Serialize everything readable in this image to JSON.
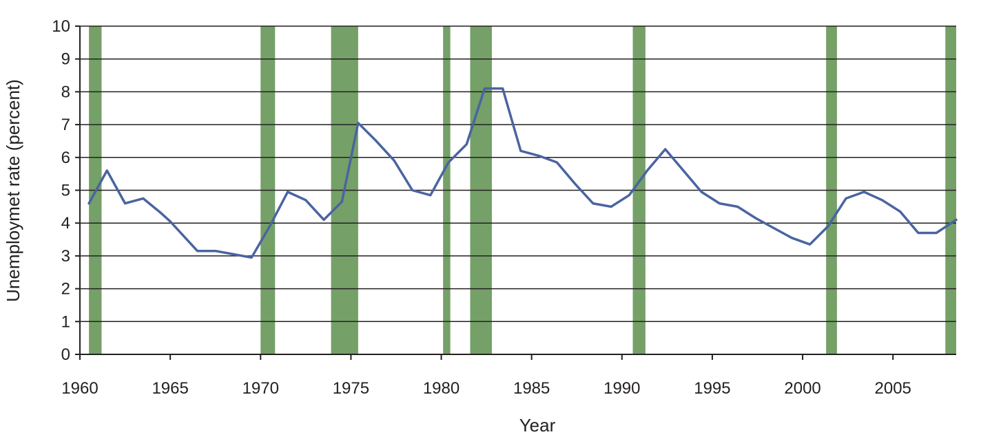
{
  "chart_data": {
    "type": "line",
    "title": "",
    "xlabel": "Year",
    "ylabel": "Unemploymet rate (percent)",
    "xlim": [
      1960,
      2008.5
    ],
    "ylim": [
      0,
      10
    ],
    "x_ticks": [
      "1960",
      "1965",
      "1970",
      "1975",
      "1980",
      "1985",
      "1990",
      "1995",
      "2000",
      "2005"
    ],
    "y_ticks": [
      "0",
      "1",
      "2",
      "3",
      "4",
      "5",
      "6",
      "7",
      "8",
      "9",
      "10"
    ],
    "grid": "horizontal",
    "line_color": "#4a64a0",
    "recession_color": "#75a068",
    "recessions": [
      {
        "start": 1960.5,
        "end": 1961.2
      },
      {
        "start": 1970.0,
        "end": 1970.8
      },
      {
        "start": 1973.9,
        "end": 1975.4
      },
      {
        "start": 1980.1,
        "end": 1980.5
      },
      {
        "start": 1981.6,
        "end": 1982.8
      },
      {
        "start": 1990.6,
        "end": 1991.3
      },
      {
        "start": 2001.3,
        "end": 2001.9
      },
      {
        "start": 2007.9,
        "end": 2008.5
      }
    ],
    "series": [
      {
        "x": [
          1960.5,
          1961.5,
          1962.5,
          1963.5,
          1964.5,
          1965.0,
          1966.5,
          1967.5,
          1968.5,
          1969.5,
          1970.5,
          1971.5,
          1972.5,
          1973.5,
          1974.5,
          1975.4,
          1976.4,
          1977.4,
          1978.4,
          1979.4,
          1980.4,
          1981.4,
          1982.4,
          1983.4,
          1984.4,
          1985.4,
          1986.4,
          1987.4,
          1988.4,
          1989.4,
          1990.4,
          1991.4,
          1992.4,
          1993.4,
          1994.4,
          1995.4,
          1996.4,
          1997.4,
          1998.4,
          1999.4,
          2000.4,
          2001.4,
          2002.4,
          2003.4,
          2004.4,
          2005.4,
          2006.4,
          2007.4,
          2008.5
        ],
        "values": [
          4.6,
          5.6,
          4.6,
          4.75,
          4.3,
          4.05,
          3.15,
          3.15,
          3.05,
          2.95,
          3.9,
          4.95,
          4.7,
          4.1,
          4.65,
          7.05,
          6.5,
          5.9,
          5.0,
          4.85,
          5.85,
          6.4,
          8.1,
          8.1,
          6.2,
          6.05,
          5.85,
          5.2,
          4.6,
          4.5,
          4.85,
          5.6,
          6.25,
          5.6,
          4.95,
          4.6,
          4.5,
          4.15,
          3.85,
          3.55,
          3.35,
          3.9,
          4.75,
          4.95,
          4.7,
          4.35,
          3.7,
          3.7,
          4.1
        ]
      }
    ]
  }
}
